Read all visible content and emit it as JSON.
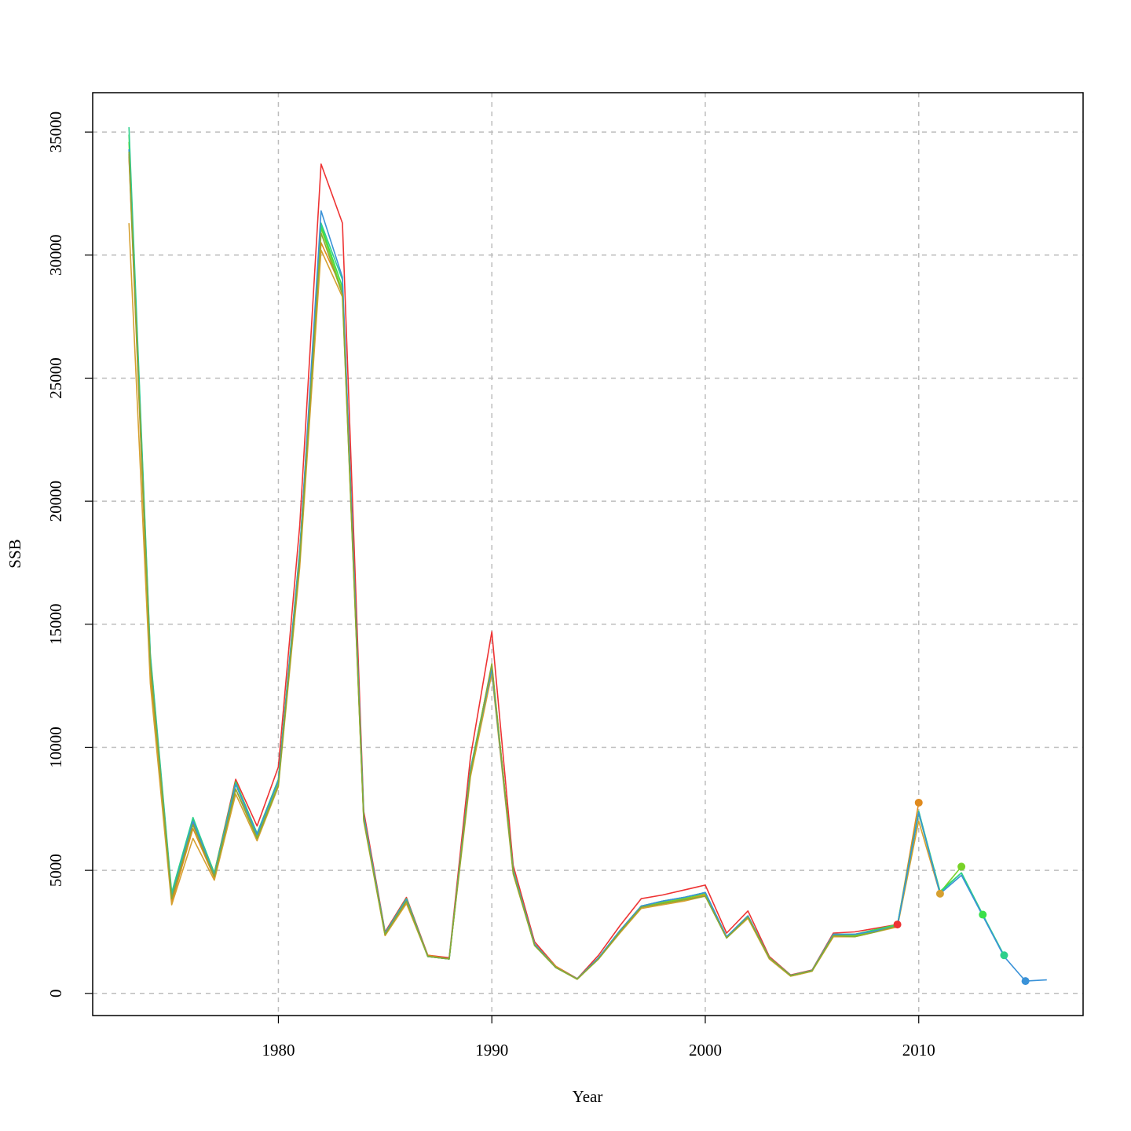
{
  "chart_data": {
    "type": "line",
    "title": "",
    "xlabel": "Year",
    "ylabel": "SSB",
    "xlim": [
      1971.3,
      2017.7
    ],
    "ylim": [
      -900,
      36600
    ],
    "xticks": [
      "1980",
      "1990",
      "2000",
      "2010"
    ],
    "xtick_values": [
      1980,
      1990,
      2000,
      2010
    ],
    "yticks": [
      "0",
      "5000",
      "10000",
      "15000",
      "20000",
      "25000",
      "30000",
      "35000"
    ],
    "ytick_values": [
      0,
      5000,
      10000,
      15000,
      20000,
      25000,
      30000,
      35000
    ],
    "grid": true,
    "legend": "none",
    "series": [
      {
        "color": "#ee3333",
        "start": 1973,
        "values": [
          34100,
          13300,
          3800,
          6900,
          4900,
          8700,
          6800,
          9200,
          19000,
          33700,
          31300,
          7400,
          2500,
          3900,
          1550,
          1450,
          9600,
          14700,
          5200,
          2100,
          1100,
          600,
          1550,
          2750,
          3850,
          4000,
          4200,
          4400,
          2450,
          3350,
          1500,
          750,
          950,
          2450,
          2500,
          2650,
          2800
        ],
        "end_marker": 2800
      },
      {
        "color": "#e08a1e",
        "start": 1973,
        "values": [
          34000,
          13000,
          3700,
          6700,
          4700,
          8300,
          6400,
          8600,
          17600,
          30500,
          28600,
          7100,
          2350,
          3700,
          1550,
          1400,
          9000,
          13300,
          4900,
          2000,
          1100,
          580,
          1400,
          2500,
          3500,
          3650,
          3800,
          4000,
          2300,
          3100,
          1400,
          700,
          900,
          2300,
          2350,
          2550,
          2750,
          7750
        ],
        "end_marker": 7750
      },
      {
        "color": "#d6a030",
        "start": 1973,
        "values": [
          31300,
          12600,
          3600,
          6300,
          4600,
          8100,
          6200,
          8400,
          17300,
          30200,
          28300,
          7000,
          2350,
          3650,
          1500,
          1400,
          8800,
          13000,
          4850,
          1950,
          1050,
          570,
          1400,
          2450,
          3450,
          3600,
          3750,
          3950,
          2250,
          3050,
          1400,
          700,
          900,
          2300,
          2300,
          2500,
          2700,
          7000,
          4050
        ],
        "end_marker": 4050
      },
      {
        "color": "#78d228",
        "start": 1973,
        "values": [
          34600,
          13600,
          4000,
          7000,
          4800,
          8500,
          6400,
          8600,
          17900,
          31100,
          28500,
          7100,
          2400,
          3800,
          1500,
          1400,
          9000,
          13200,
          4950,
          1950,
          1050,
          580,
          1450,
          2550,
          3550,
          3700,
          3850,
          4050,
          2300,
          3150,
          1450,
          720,
          920,
          2350,
          2350,
          2550,
          2750,
          7300,
          4100,
          5150
        ],
        "end_marker": 5150
      },
      {
        "color": "#3ae04a",
        "start": 1973,
        "values": [
          34900,
          13700,
          4000,
          7100,
          4900,
          8600,
          6500,
          8700,
          18000,
          31200,
          28700,
          7200,
          2450,
          3850,
          1500,
          1400,
          9100,
          13300,
          5000,
          2000,
          1050,
          590,
          1450,
          2550,
          3550,
          3750,
          3900,
          4100,
          2300,
          3150,
          1450,
          730,
          930,
          2400,
          2400,
          2600,
          2800,
          7400,
          4150,
          4900,
          3200
        ],
        "end_marker": 3200
      },
      {
        "color": "#2ecf8c",
        "start": 1973,
        "values": [
          35200,
          13800,
          4100,
          7150,
          4850,
          8550,
          6500,
          8650,
          17900,
          31300,
          29000,
          7200,
          2450,
          3850,
          1500,
          1400,
          9100,
          13300,
          5000,
          2000,
          1050,
          590,
          1450,
          2550,
          3550,
          3750,
          3900,
          4100,
          2300,
          3150,
          1450,
          730,
          930,
          2400,
          2400,
          2550,
          2750,
          7400,
          4100,
          4900,
          3200,
          1550
        ],
        "end_marker": 1550
      },
      {
        "color": "#3a92d8",
        "start": 1973,
        "values": [
          34300,
          13500,
          3900,
          7000,
          4800,
          8500,
          6450,
          8650,
          17900,
          31800,
          29100,
          7200,
          2450,
          3800,
          1500,
          1400,
          9050,
          13200,
          4950,
          2000,
          1050,
          590,
          1450,
          2550,
          3550,
          3750,
          3900,
          4100,
          2300,
          3150,
          1450,
          730,
          930,
          2400,
          2400,
          2550,
          2750,
          7350,
          4050,
          4800,
          3150,
          1500,
          500,
          550
        ],
        "end_marker_year": 2015,
        "end_marker": 500
      },
      {
        "color": "#8aaa32",
        "start": 1973,
        "values": [
          34200,
          13400,
          3850,
          6850,
          4750,
          8300,
          6300,
          8450,
          17600,
          30900,
          28400,
          7050,
          2400,
          3750,
          1500,
          1400,
          8950,
          13400,
          4900,
          1950,
          1050,
          580,
          1400,
          2500,
          3500,
          3650,
          3800,
          3950,
          2250,
          3100,
          1450,
          720,
          920,
          2350,
          2300,
          2500,
          2750
        ],
        "end_marker": null
      }
    ]
  }
}
